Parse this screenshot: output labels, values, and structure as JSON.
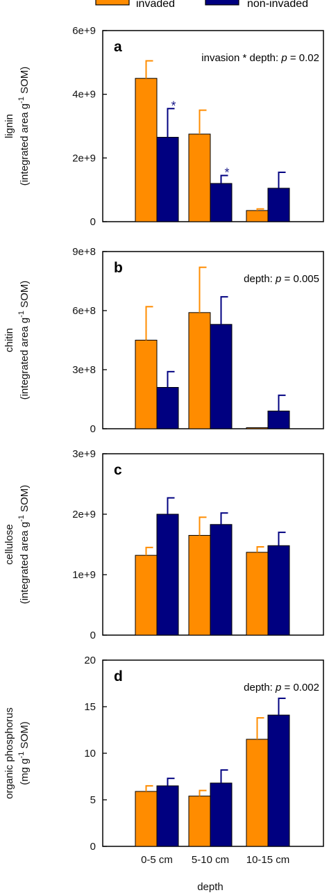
{
  "legend": [
    {
      "name": "invaded",
      "color": "#FF8C00"
    },
    {
      "name": "non-invaded",
      "color": "#000080"
    }
  ],
  "xlabel": "depth",
  "categories": [
    "0-5 cm",
    "5-10 cm",
    "10-15 cm"
  ],
  "chart_data": [
    {
      "type": "bar",
      "letter": "a",
      "annotation": "invasion * depth: ",
      "annotation_p": "p",
      "annotation_val": " = 0.02",
      "ylabel_line1": "lignin",
      "ylabel_line2": "(integrated area g",
      "ylabel_sup": "-1",
      "ylabel_line2_end": " SOM)",
      "ylim": [
        0,
        6000000000
      ],
      "yticks": [
        0,
        2000000000,
        4000000000,
        6000000000
      ],
      "yticklabels": [
        "0",
        "2e+9",
        "4e+9",
        "6e+9"
      ],
      "categories": [
        "0-5 cm",
        "5-10 cm",
        "10-15 cm"
      ],
      "series": [
        {
          "name": "invaded",
          "values": [
            4500000000,
            2750000000,
            350000000
          ],
          "errors": [
            550000000,
            750000000,
            50000000
          ]
        },
        {
          "name": "non-invaded",
          "values": [
            2650000000,
            1200000000,
            1050000000
          ],
          "errors": [
            900000000,
            250000000,
            500000000
          ]
        }
      ],
      "significance": [
        {
          "category": 0,
          "label": "*"
        },
        {
          "category": 1,
          "label": "*"
        }
      ]
    },
    {
      "type": "bar",
      "letter": "b",
      "annotation": "depth: ",
      "annotation_p": "p",
      "annotation_val": " = 0.005",
      "ylabel_line1": "chitin",
      "ylabel_line2": "(integrated area g",
      "ylabel_sup": "-1",
      "ylabel_line2_end": " SOM)",
      "ylim": [
        0,
        900000000
      ],
      "yticks": [
        0,
        300000000,
        600000000,
        900000000
      ],
      "yticklabels": [
        "0",
        "3e+8",
        "6e+8",
        "9e+8"
      ],
      "categories": [
        "0-5 cm",
        "5-10 cm",
        "10-15 cm"
      ],
      "series": [
        {
          "name": "invaded",
          "values": [
            450000000,
            590000000,
            5000000
          ],
          "errors": [
            170000000,
            230000000,
            0
          ]
        },
        {
          "name": "non-invaded",
          "values": [
            210000000,
            530000000,
            90000000
          ],
          "errors": [
            80000000,
            140000000,
            80000000
          ]
        }
      ],
      "significance": []
    },
    {
      "type": "bar",
      "letter": "c",
      "annotation": "",
      "annotation_p": "",
      "annotation_val": "",
      "ylabel_line1": "cellulose",
      "ylabel_line2": "(integrated area g",
      "ylabel_sup": "-1",
      "ylabel_line2_end": " SOM)",
      "ylim": [
        0,
        3000000000
      ],
      "yticks": [
        0,
        1000000000,
        2000000000,
        3000000000
      ],
      "yticklabels": [
        "0",
        "1e+9",
        "2e+9",
        "3e+9"
      ],
      "categories": [
        "0-5 cm",
        "5-10 cm",
        "10-15 cm"
      ],
      "series": [
        {
          "name": "invaded",
          "values": [
            1320000000,
            1650000000,
            1370000000
          ],
          "errors": [
            130000000,
            300000000,
            90000000
          ]
        },
        {
          "name": "non-invaded",
          "values": [
            2000000000,
            1830000000,
            1480000000
          ],
          "errors": [
            270000000,
            190000000,
            220000000
          ]
        }
      ],
      "significance": []
    },
    {
      "type": "bar",
      "letter": "d",
      "annotation": "depth: ",
      "annotation_p": "p",
      "annotation_val": " = 0.002",
      "ylabel_line1": "organic phosphorus",
      "ylabel_line2": "(mg g",
      "ylabel_sup": "-1",
      "ylabel_line2_end": " SOM)",
      "ylim": [
        0,
        20
      ],
      "yticks": [
        0,
        5,
        10,
        15,
        20
      ],
      "yticklabels": [
        "0",
        "5",
        "10",
        "15",
        "20"
      ],
      "categories": [
        "0-5 cm",
        "5-10 cm",
        "10-15 cm"
      ],
      "series": [
        {
          "name": "invaded",
          "values": [
            5.9,
            5.4,
            11.5
          ],
          "errors": [
            0.6,
            0.6,
            2.3
          ]
        },
        {
          "name": "non-invaded",
          "values": [
            6.5,
            6.8,
            14.1
          ],
          "errors": [
            0.8,
            1.4,
            1.8
          ]
        }
      ],
      "significance": []
    }
  ]
}
